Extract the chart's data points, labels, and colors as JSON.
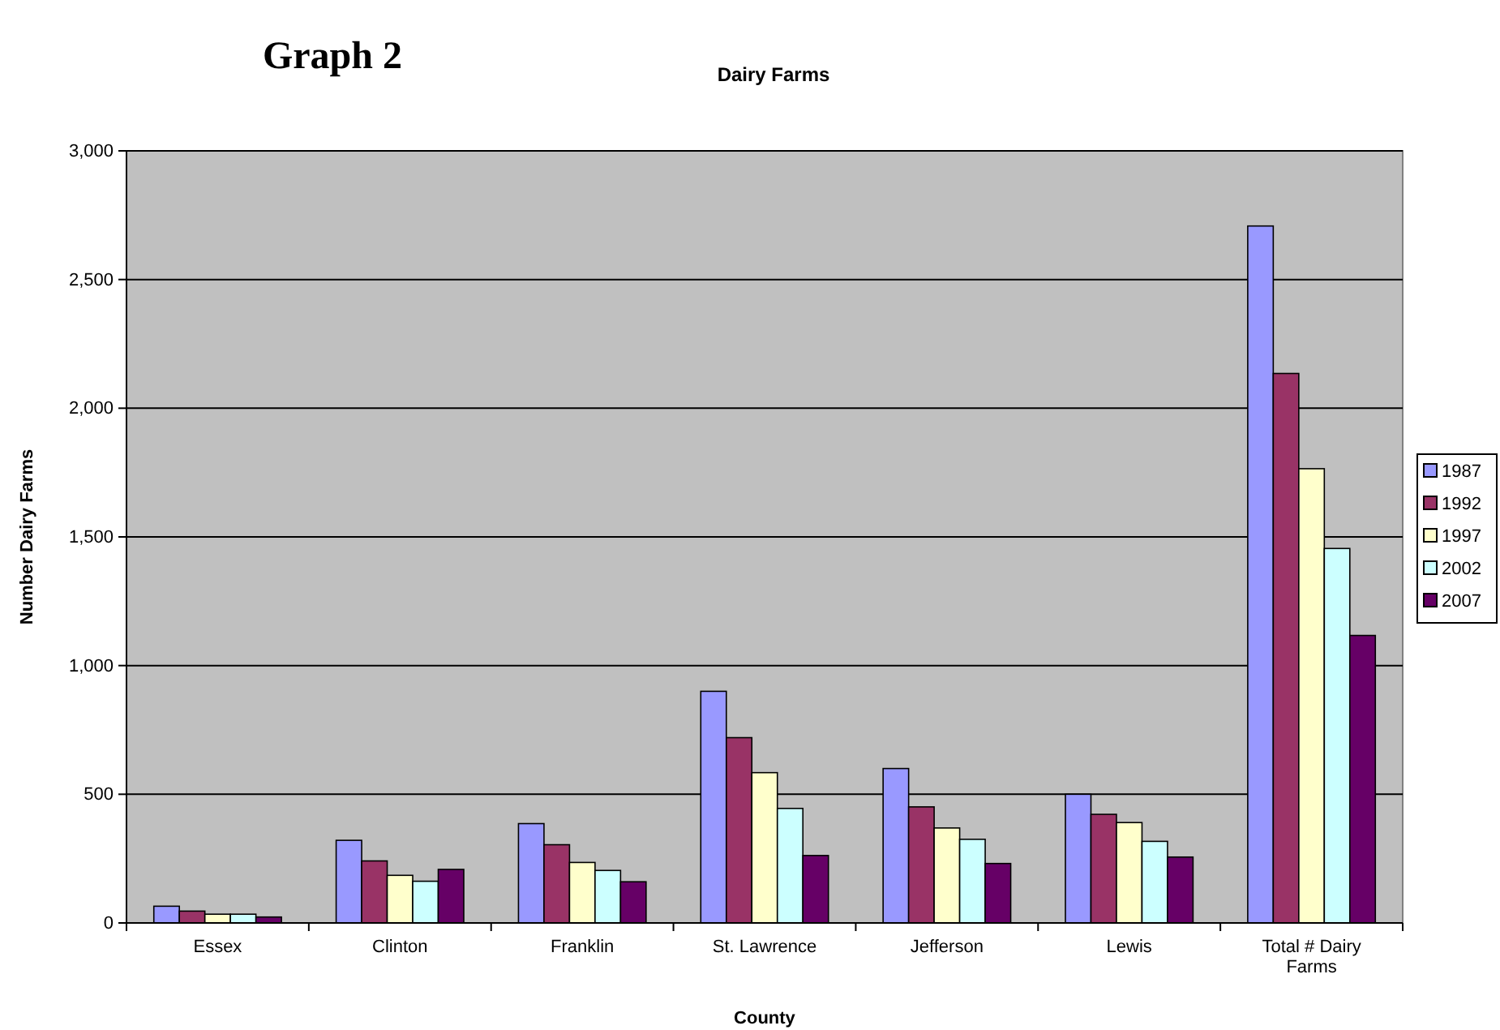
{
  "chart_data": {
    "type": "bar",
    "title": "Graph 2",
    "subtitle": "Dairy Farms",
    "xlabel": "County",
    "ylabel": "Number Dairy Farms",
    "categories": [
      "Essex",
      "Clinton",
      "Franklin",
      "St. Lawrence",
      "Jefferson",
      "Lewis",
      "Total # Dairy Farms"
    ],
    "series": [
      {
        "name": "1987",
        "color": "#9999ff",
        "values": [
          65,
          321,
          386,
          900,
          600,
          500,
          2708
        ]
      },
      {
        "name": "1992",
        "color": "#993366",
        "values": [
          46,
          241,
          304,
          720,
          451,
          422,
          2135
        ]
      },
      {
        "name": "1997",
        "color": "#ffffcc",
        "values": [
          34,
          185,
          235,
          584,
          369,
          390,
          1765
        ]
      },
      {
        "name": "2002",
        "color": "#ccffff",
        "values": [
          34,
          162,
          204,
          445,
          325,
          317,
          1455
        ]
      },
      {
        "name": "2007",
        "color": "#660066",
        "values": [
          23,
          208,
          160,
          262,
          231,
          256,
          1117
        ]
      }
    ],
    "ylim": [
      0,
      3000
    ],
    "yticks": [
      {
        "value": 0,
        "label": "0"
      },
      {
        "value": 500,
        "label": "500"
      },
      {
        "value": 1000,
        "label": "1,000"
      },
      {
        "value": 1500,
        "label": "1,500"
      },
      {
        "value": 2000,
        "label": "2,000"
      },
      {
        "value": 2500,
        "label": "2,500"
      },
      {
        "value": 3000,
        "label": "3,000"
      }
    ],
    "grid": "y",
    "legend": "right"
  }
}
